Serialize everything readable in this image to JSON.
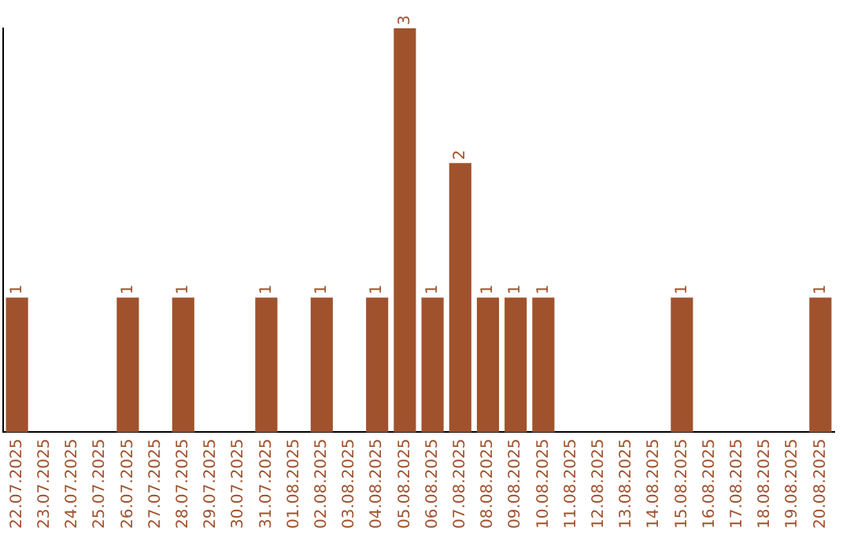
{
  "chart_data": {
    "type": "bar",
    "categories": [
      "22.07.2025",
      "23.07.2025",
      "24.07.2025",
      "25.07.2025",
      "26.07.2025",
      "27.07.2025",
      "28.07.2025",
      "29.07.2025",
      "30.07.2025",
      "31.07.2025",
      "01.08.2025",
      "02.08.2025",
      "03.08.2025",
      "04.08.2025",
      "05.08.2025",
      "06.08.2025",
      "07.08.2025",
      "08.08.2025",
      "09.08.2025",
      "10.08.2025",
      "11.08.2025",
      "12.08.2025",
      "13.08.2025",
      "14.08.2025",
      "15.08.2025",
      "16.08.2025",
      "17.08.2025",
      "18.08.2025",
      "19.08.2025",
      "20.08.2025"
    ],
    "values": [
      1,
      0,
      0,
      0,
      1,
      0,
      1,
      0,
      0,
      1,
      0,
      1,
      0,
      1,
      3,
      1,
      2,
      1,
      1,
      1,
      0,
      0,
      0,
      0,
      1,
      0,
      0,
      0,
      0,
      1
    ],
    "value_labels": [
      "1",
      null,
      null,
      null,
      "1",
      null,
      "1",
      null,
      null,
      "1",
      null,
      "1",
      null,
      "1",
      "3",
      "1",
      "2",
      "1",
      "1",
      "1",
      null,
      null,
      null,
      null,
      "1",
      null,
      null,
      null,
      null,
      "1"
    ],
    "color": "#a0522d",
    "grid": false,
    "legend": false,
    "tick_labels": "x"
  }
}
